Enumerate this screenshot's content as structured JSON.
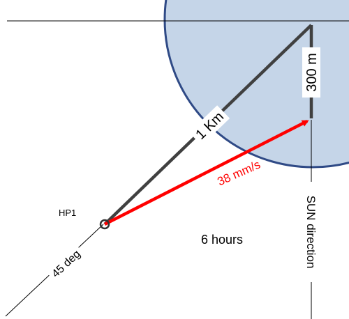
{
  "labels": {
    "length": "1 Km",
    "offset": "300 m",
    "velocity": "38 mm/s",
    "hp": "HP1",
    "angle": "45 deg",
    "duration": "6 hours",
    "sun": "SUN direction"
  },
  "colors": {
    "circle_fill": "#c5d5e8",
    "circle_stroke": "#2f4a86",
    "rod": "#404040",
    "velocity_arrow": "#ff0000",
    "thin_line": "#000000"
  }
}
